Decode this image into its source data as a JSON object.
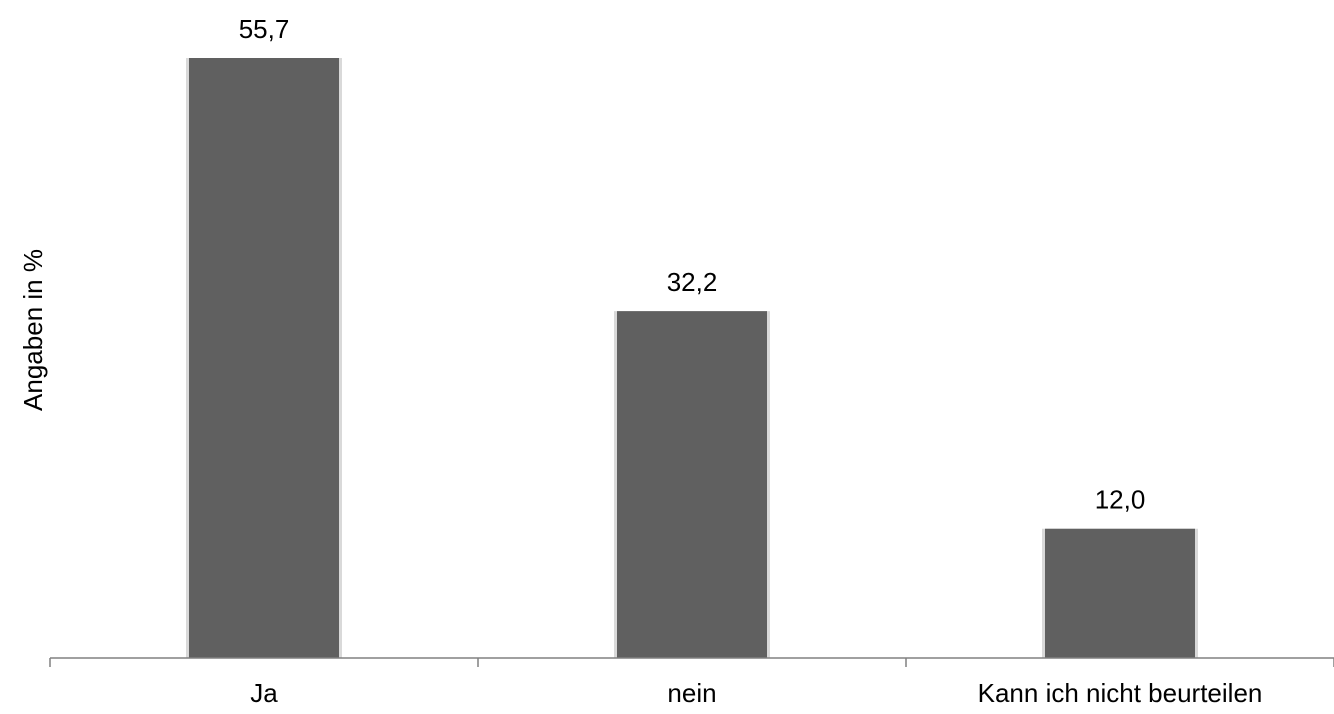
{
  "chart_data": {
    "type": "bar",
    "categories": [
      "Ja",
      "nein",
      "Kann ich nicht beurteilen"
    ],
    "values": [
      55.7,
      32.2,
      12.0
    ],
    "value_labels": [
      "55,7",
      "32,2",
      "12,0"
    ],
    "title": "",
    "xlabel": "",
    "ylabel": "Angaben in %",
    "ylim": [
      0,
      60
    ],
    "grid": false,
    "legend": "none",
    "bar_color": "#606060"
  }
}
